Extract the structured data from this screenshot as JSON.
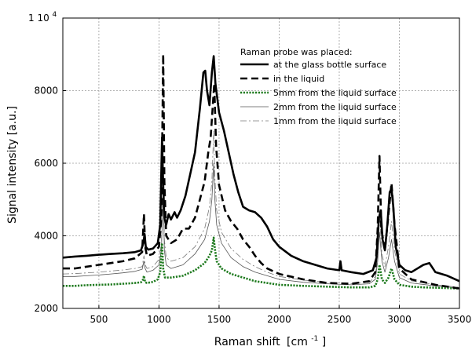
{
  "chart_data": {
    "type": "line",
    "x_axis": {
      "label_main": "Raman shift",
      "unit_base": "[cm",
      "unit_exp": "-1",
      "unit_close": "]",
      "range": [
        200,
        3500
      ],
      "ticks": [
        500,
        1000,
        1500,
        2000,
        2500,
        3000,
        3500
      ]
    },
    "y_axis": {
      "label": "Signal intensity  [a.u.]",
      "range": [
        2000,
        10000
      ],
      "ticks": [
        2000,
        4000,
        6000,
        8000
      ],
      "top_tick_base": "1 10",
      "top_tick_exp": "4"
    },
    "grid": true,
    "legend": {
      "title": "Raman probe was placed:",
      "position": "top-right"
    },
    "series": [
      {
        "name": "at the glass bottle surface",
        "style": "solid-thick",
        "color": "#000000",
        "x": [
          200,
          300,
          400,
          500,
          600,
          700,
          800,
          850,
          870,
          880,
          890,
          910,
          950,
          990,
          1010,
          1025,
          1035,
          1045,
          1060,
          1080,
          1100,
          1130,
          1150,
          1180,
          1220,
          1260,
          1300,
          1340,
          1370,
          1385,
          1400,
          1420,
          1440,
          1455,
          1470,
          1500,
          1540,
          1580,
          1620,
          1660,
          1700,
          1750,
          1800,
          1850,
          1900,
          1950,
          2000,
          2100,
          2200,
          2300,
          2400,
          2500,
          2510,
          2520,
          2600,
          2700,
          2780,
          2810,
          2830,
          2845,
          2860,
          2880,
          2900,
          2920,
          2935,
          2950,
          2970,
          3000,
          3050,
          3100,
          3200,
          3250,
          3300,
          3400,
          3500
        ],
        "y": [
          3400,
          3430,
          3450,
          3480,
          3500,
          3520,
          3550,
          3600,
          3800,
          4050,
          3700,
          3620,
          3650,
          3800,
          4300,
          6700,
          5400,
          4500,
          4300,
          4600,
          4450,
          4650,
          4500,
          4700,
          5100,
          5700,
          6300,
          7500,
          8500,
          8550,
          8000,
          7600,
          8500,
          8950,
          8200,
          7400,
          6900,
          6300,
          5700,
          5200,
          4800,
          4700,
          4650,
          4500,
          4250,
          3900,
          3700,
          3450,
          3300,
          3200,
          3100,
          3050,
          3300,
          3050,
          3000,
          2950,
          3050,
          3400,
          4500,
          4700,
          3900,
          3600,
          4300,
          5200,
          5300,
          4800,
          3700,
          3200,
          3050,
          3000,
          3200,
          3250,
          3000,
          2900,
          2750
        ]
      },
      {
        "name": "in the liquid",
        "style": "dashed-thick",
        "color": "#000000",
        "x": [
          200,
          300,
          400,
          500,
          600,
          700,
          800,
          860,
          875,
          885,
          900,
          950,
          1000,
          1020,
          1035,
          1045,
          1060,
          1100,
          1150,
          1200,
          1250,
          1300,
          1340,
          1380,
          1410,
          1430,
          1450,
          1460,
          1475,
          1500,
          1550,
          1600,
          1650,
          1700,
          1750,
          1800,
          1850,
          1900,
          2000,
          2200,
          2400,
          2600,
          2750,
          2800,
          2820,
          2835,
          2850,
          2880,
          2910,
          2935,
          2960,
          3000,
          3100,
          3300,
          3500
        ],
        "y": [
          3100,
          3100,
          3150,
          3200,
          3250,
          3300,
          3380,
          3550,
          4600,
          3700,
          3450,
          3500,
          3700,
          4500,
          9000,
          5500,
          4000,
          3800,
          3900,
          4200,
          4200,
          4500,
          5000,
          5500,
          6300,
          6700,
          7700,
          8200,
          6500,
          5400,
          4700,
          4400,
          4200,
          3900,
          3700,
          3450,
          3250,
          3100,
          2950,
          2800,
          2700,
          2680,
          2750,
          3000,
          4200,
          6200,
          4200,
          3600,
          4600,
          5450,
          4300,
          3100,
          2800,
          2650,
          2550
        ]
      },
      {
        "name": "5mm from the liquid surface",
        "style": "dotted-thick",
        "color": "#1e7a1e",
        "x": [
          200,
          300,
          400,
          500,
          600,
          700,
          800,
          850,
          865,
          875,
          885,
          900,
          950,
          990,
          1010,
          1025,
          1035,
          1050,
          1100,
          1200,
          1300,
          1380,
          1420,
          1440,
          1455,
          1465,
          1480,
          1520,
          1600,
          1700,
          1800,
          1900,
          2000,
          2200,
          2400,
          2600,
          2750,
          2800,
          2820,
          2835,
          2855,
          2880,
          2910,
          2935,
          2960,
          3000,
          3100,
          3200,
          3300,
          3400,
          3500
        ],
        "y": [
          2620,
          2620,
          2640,
          2650,
          2660,
          2680,
          2700,
          2720,
          2780,
          2900,
          2720,
          2700,
          2730,
          2800,
          3000,
          3800,
          3100,
          2850,
          2850,
          2900,
          3050,
          3250,
          3450,
          3600,
          3950,
          3650,
          3300,
          3100,
          2950,
          2850,
          2750,
          2700,
          2650,
          2620,
          2600,
          2580,
          2580,
          2620,
          2800,
          3200,
          2800,
          2700,
          2850,
          3100,
          2800,
          2650,
          2600,
          2580,
          2570,
          2560,
          2550
        ]
      },
      {
        "name": "2mm from the liquid surface",
        "style": "solid-thin",
        "color": "#555555",
        "x": [
          200,
          300,
          400,
          500,
          600,
          700,
          800,
          860,
          875,
          885,
          900,
          950,
          1000,
          1020,
          1035,
          1045,
          1060,
          1100,
          1200,
          1300,
          1380,
          1420,
          1440,
          1455,
          1465,
          1480,
          1520,
          1600,
          1700,
          1800,
          1900,
          2000,
          2200,
          2400,
          2600,
          2750,
          2800,
          2820,
          2835,
          2855,
          2880,
          2910,
          2935,
          2960,
          3000,
          3100,
          3300,
          3500
        ],
        "y": [
          2880,
          2880,
          2900,
          2920,
          2950,
          2980,
          3020,
          3080,
          3300,
          3100,
          3000,
          3050,
          3200,
          3600,
          5200,
          3600,
          3200,
          3100,
          3200,
          3500,
          3900,
          4400,
          5000,
          6000,
          5000,
          4300,
          3800,
          3400,
          3150,
          3000,
          2900,
          2800,
          2720,
          2680,
          2650,
          2680,
          2800,
          3300,
          4100,
          3300,
          3000,
          3400,
          3900,
          3300,
          2850,
          2700,
          2620,
          2560
        ]
      },
      {
        "name": "1mm from the liquid surface",
        "style": "dashdot-thin",
        "color": "#777777",
        "x": [
          200,
          300,
          400,
          500,
          600,
          700,
          800,
          860,
          875,
          885,
          900,
          950,
          1000,
          1020,
          1035,
          1045,
          1060,
          1100,
          1200,
          1300,
          1380,
          1420,
          1440,
          1455,
          1465,
          1480,
          1520,
          1600,
          1700,
          1800,
          1900,
          2000,
          2200,
          2400,
          2600,
          2750,
          2800,
          2820,
          2835,
          2855,
          2880,
          2910,
          2935,
          2960,
          3000,
          3100,
          3300,
          3500
        ],
        "y": [
          2950,
          2960,
          2980,
          3000,
          3030,
          3060,
          3100,
          3150,
          3450,
          3200,
          3100,
          3150,
          3350,
          3800,
          5800,
          3900,
          3400,
          3300,
          3400,
          3700,
          4200,
          4800,
          5500,
          6900,
          5600,
          4700,
          4100,
          3650,
          3350,
          3150,
          3000,
          2880,
          2780,
          2720,
          2680,
          2720,
          2880,
          3500,
          4600,
          3500,
          3150,
          3700,
          4400,
          3600,
          2950,
          2760,
          2650,
          2580
        ]
      }
    ]
  }
}
